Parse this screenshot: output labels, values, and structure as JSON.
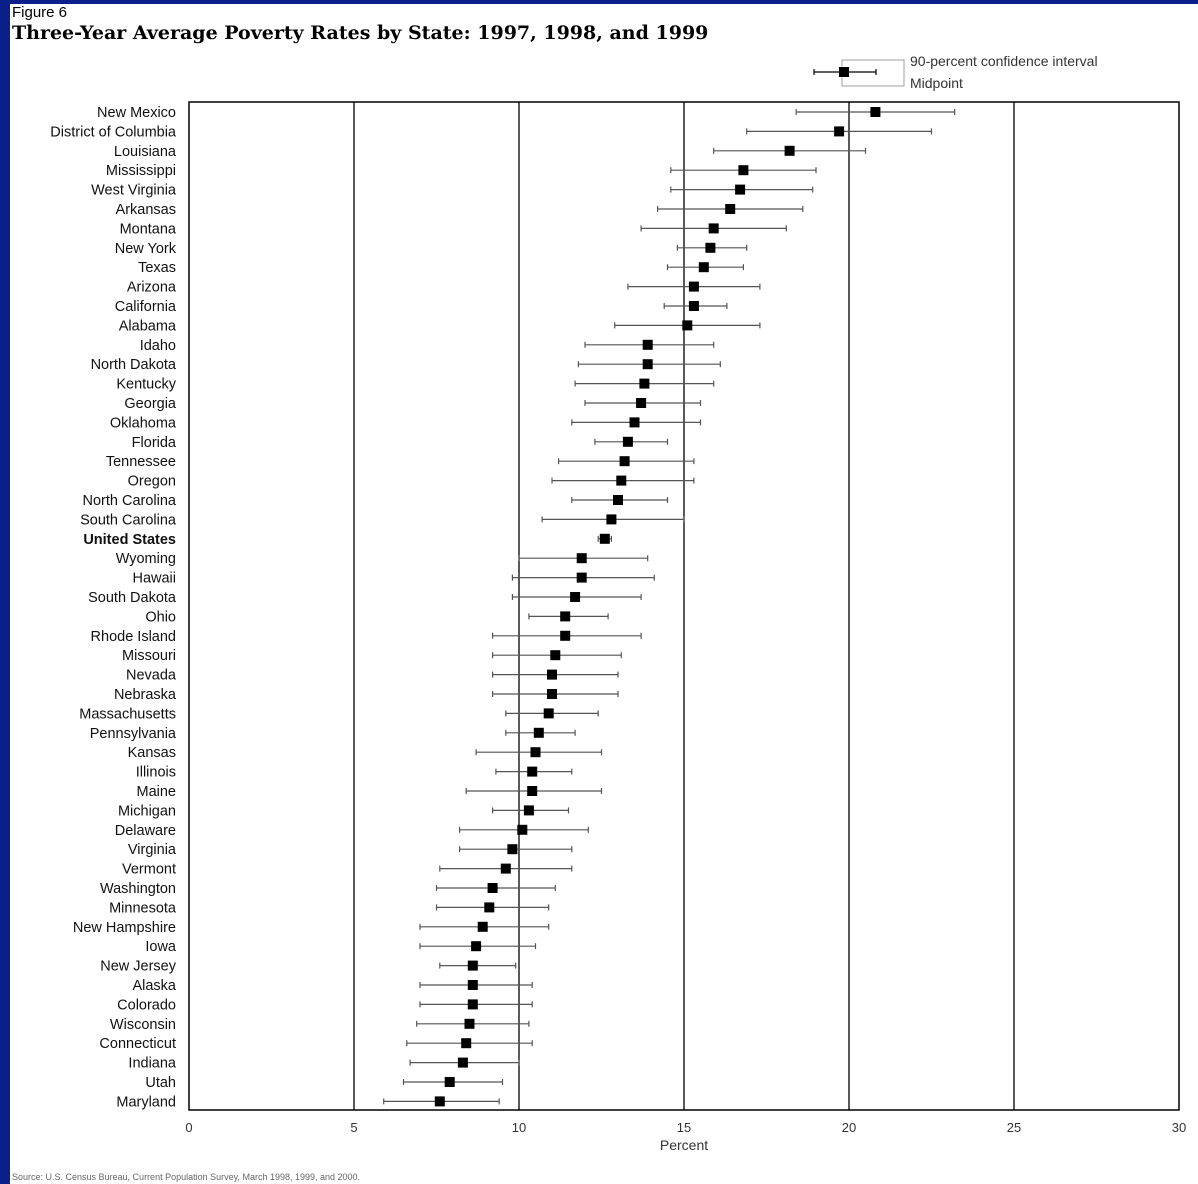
{
  "figure_label": "Figure 6",
  "source_note": "Source: U.S. Census Bureau, Current Population Survey, March 1998, 1999, and 2000.",
  "legend": {
    "ci_label": "90-percent confidence interval",
    "mid_label": "Midpoint"
  },
  "colors": {
    "background": "#0a1f8a",
    "marker": "#000000",
    "interval": "#555555"
  },
  "chart_data": {
    "type": "scatter",
    "title": "Three-Year Average Poverty Rates by State:  1997, 1998, and 1999",
    "xlabel": "Percent",
    "ylabel": "",
    "xlim": [
      0,
      30
    ],
    "xticks": [
      "0",
      "5",
      "10",
      "15",
      "20",
      "25",
      "30"
    ],
    "grid": "vertical lines at 5, 10, 15, 20, 25",
    "legend_position": "top-right",
    "highlighted_category": "United States",
    "categories": [
      "New Mexico",
      "District of Columbia",
      "Louisiana",
      "Mississippi",
      "West Virginia",
      "Arkansas",
      "Montana",
      "New York",
      "Texas",
      "Arizona",
      "California",
      "Alabama",
      "Idaho",
      "North Dakota",
      "Kentucky",
      "Georgia",
      "Oklahoma",
      "Florida",
      "Tennessee",
      "Oregon",
      "North Carolina",
      "South Carolina",
      "United States",
      "Wyoming",
      "Hawaii",
      "South Dakota",
      "Ohio",
      "Rhode Island",
      "Missouri",
      "Nevada",
      "Nebraska",
      "Massachusetts",
      "Pennsylvania",
      "Kansas",
      "Illinois",
      "Maine",
      "Michigan",
      "Delaware",
      "Virginia",
      "Vermont",
      "Washington",
      "Minnesota",
      "New Hampshire",
      "Iowa",
      "New Jersey",
      "Alaska",
      "Colorado",
      "Wisconsin",
      "Connecticut",
      "Indiana",
      "Utah",
      "Maryland"
    ],
    "series": [
      {
        "name": "Midpoint",
        "values": [
          20.8,
          19.7,
          18.2,
          16.8,
          16.7,
          16.4,
          15.9,
          15.8,
          15.6,
          15.3,
          15.3,
          15.1,
          13.9,
          13.9,
          13.8,
          13.7,
          13.5,
          13.3,
          13.2,
          13.1,
          13.0,
          12.8,
          12.6,
          11.9,
          11.9,
          11.7,
          11.4,
          11.4,
          11.1,
          11.0,
          11.0,
          10.9,
          10.6,
          10.5,
          10.4,
          10.4,
          10.3,
          10.1,
          9.8,
          9.6,
          9.2,
          9.1,
          8.9,
          8.7,
          8.6,
          8.6,
          8.6,
          8.5,
          8.4,
          8.3,
          7.9,
          7.6
        ]
      },
      {
        "name": "90-percent confidence interval",
        "lower": [
          18.4,
          16.9,
          15.9,
          14.6,
          14.6,
          14.2,
          13.7,
          14.8,
          14.5,
          13.3,
          14.4,
          12.9,
          12.0,
          11.8,
          11.7,
          12.0,
          11.6,
          12.3,
          11.2,
          11.0,
          11.6,
          10.7,
          12.4,
          10.0,
          9.8,
          9.8,
          10.3,
          9.2,
          9.2,
          9.2,
          9.2,
          9.6,
          9.6,
          8.7,
          9.3,
          8.4,
          9.2,
          8.2,
          8.2,
          7.6,
          7.5,
          7.5,
          7.0,
          7.0,
          7.6,
          7.0,
          7.0,
          6.9,
          6.6,
          6.7,
          6.5,
          5.9
        ],
        "upper": [
          23.2,
          22.5,
          20.5,
          19.0,
          18.9,
          18.6,
          18.1,
          16.9,
          16.8,
          17.3,
          16.3,
          17.3,
          15.9,
          16.1,
          15.9,
          15.5,
          15.5,
          14.5,
          15.3,
          15.3,
          14.5,
          15.0,
          12.8,
          13.9,
          14.1,
          13.7,
          12.7,
          13.7,
          13.1,
          13.0,
          13.0,
          12.4,
          11.7,
          12.5,
          11.6,
          12.5,
          11.5,
          12.1,
          11.6,
          11.6,
          11.1,
          10.9,
          10.9,
          10.5,
          9.9,
          10.4,
          10.4,
          10.3,
          10.4,
          10.0,
          9.5,
          9.4
        ]
      }
    ]
  }
}
